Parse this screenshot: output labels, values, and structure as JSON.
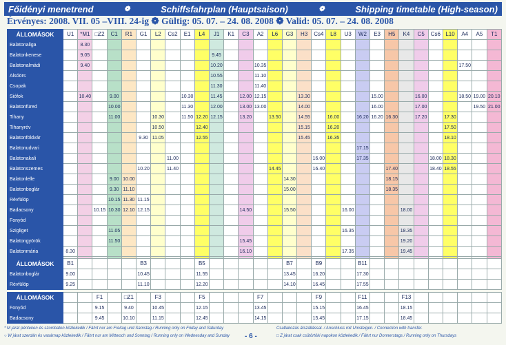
{
  "header": {
    "hu_title": "Főidényi menetrend",
    "de_title": "Schiffsfahrplan (Hauptsaison)",
    "en_title": "Shipping timetable (High-season)",
    "validity": "Érvényes: 2008. VII. 05 –VIII. 24-ig ❁ Gültig: 05. 07. – 24. 08. 2008 ❁ Valid: 05. 07. – 24. 08. 2008"
  },
  "main": {
    "stations_label": "ÁLLOMÁSOK",
    "services": [
      "U1",
      "*M1",
      "□Z2",
      "C1",
      "R1",
      "G1",
      "L2",
      "Cs2",
      "E1",
      "L4",
      "J1",
      "K1",
      "C3",
      "A2",
      "L6",
      "G3",
      "H3",
      "Cs4",
      "L8",
      "U3",
      "W2",
      "E3",
      "H5",
      "K4",
      "C5",
      "Cs6",
      "L10",
      "A4",
      "A5",
      "T1"
    ],
    "service_colors": [
      "#ffffff",
      "#f3d0e6",
      "#ffffff",
      "#b8e0c8",
      "#fde7c4",
      "#ffffff",
      "#ffffcc",
      "#ffffff",
      "#ffffff",
      "#ffff66",
      "#cfe9df",
      "#ffffff",
      "#f0ccea",
      "#ffffff",
      "#ffff66",
      "#ffffcc",
      "#fbe0c8",
      "#ffffff",
      "#ffff66",
      "#ffffff",
      "#c9ccf2",
      "#ffffff",
      "#f7c7a8",
      "#e8e8e8",
      "#f0ccea",
      "#ffffff",
      "#ffff66",
      "#ffffff",
      "#ffffff",
      "#f4b8d4"
    ],
    "rows": [
      {
        "st": "Balatonaliga",
        "c": {
          "1": "8.30"
        }
      },
      {
        "st": "Balatonkenese",
        "c": {
          "1": "9.05",
          "10": "9.45"
        }
      },
      {
        "st": "Balatonalmádi",
        "c": {
          "1": "9.40",
          "10": "10.20",
          "13": "10.35",
          "27": "17.50"
        }
      },
      {
        "st": "Alsóörs",
        "c": {
          "10": "10.55",
          "13": "11.10"
        }
      },
      {
        "st": "Csopak",
        "c": {
          "10": "11.30",
          "13": "11.40"
        }
      },
      {
        "st": "Siófok",
        "c": {
          "1": "10.40",
          "3": "9.00",
          "8": "10.30",
          "10": "11.45",
          "12": "12.00",
          "13": "12.15",
          "16": "13.30",
          "21": "15.00",
          "24": "16.00",
          "27": "18.50",
          "28": "19.00",
          "29": "20.10"
        }
      },
      {
        "st": "Balatonfüred",
        "c": {
          "3": "10.00",
          "8": "11.30",
          "10": "12.00",
          "12": "13.00",
          "13": "13.00",
          "16": "14.00",
          "21": "16.00",
          "24": "17.00",
          "28": "19.50",
          "29": "21.00"
        }
      },
      {
        "st": "Tihany",
        "c": {
          "3": "11.00",
          "6": "10.30",
          "8": "11.50",
          "9": "12.20",
          "10": "12.15",
          "12": "13.20",
          "14": "13.50",
          "16": "14.55",
          "18": "16.00",
          "20": "16.20",
          "21": "16.20",
          "22": "16.30",
          "24": "17.20",
          "26": "17.30"
        }
      },
      {
        "st": "Tihanyrév",
        "c": {
          "6": "10.50",
          "9": "12.40",
          "16": "15.15",
          "18": "16.20",
          "26": "17.50"
        }
      },
      {
        "st": "Balatonföldvár",
        "c": {
          "5": "9.30",
          "6": "11.05",
          "9": "12.55",
          "16": "15.45",
          "18": "16.35",
          "26": "18.10"
        }
      },
      {
        "st": "Balatonudvari",
        "c": {
          "20": "17.15"
        }
      },
      {
        "st": "Balatonakali",
        "c": {
          "7": "11.00",
          "17": "16.00",
          "20": "17.35",
          "25": "18.00",
          "26": "18.30"
        }
      },
      {
        "st": "Balatonszemes",
        "c": {
          "5": "10.20",
          "7": "11.40",
          "14": "14.45",
          "17": "16.40",
          "22": "17.40",
          "25": "18.40",
          "26": "18.55"
        }
      },
      {
        "st": "Balatonlelle",
        "c": {
          "3": "9.00",
          "4": "10.00",
          "15": "14.30",
          "22": "18.15"
        }
      },
      {
        "st": "Balatonboglár",
        "c": {
          "3": "9.30",
          "4": "11.10",
          "15": "15.00",
          "22": "18.35"
        }
      },
      {
        "st": "Révfülöp",
        "c": {
          "3": "10.15",
          "4": "11.30",
          "5": "11.15"
        }
      },
      {
        "st": "Badacsony",
        "c": {
          "2": "10.15",
          "3": "10.30",
          "4": "12.10",
          "5": "12.15",
          "12": "14.50",
          "15": "15.50",
          "19": "16.00",
          "23": "18.00"
        }
      },
      {
        "st": "Fonyód",
        "c": {}
      },
      {
        "st": "Szigliget",
        "c": {
          "3": "11.05",
          "19": "16.35",
          "23": "18.35"
        }
      },
      {
        "st": "Balatongyörök",
        "c": {
          "3": "11.50",
          "12": "15.45",
          "23": "19.20"
        }
      },
      {
        "st": "Balatonmária",
        "c": {
          "0": "8.30",
          "12": "16.10",
          "19": "17.35",
          "23": "19.45"
        }
      },
      {
        "st": "Keszthely",
        "c": {
          "0": "9.20",
          "2": "11.45",
          "3": "12.30",
          "19": "18.25",
          "23": "20.00"
        }
      }
    ]
  },
  "mid": {
    "stations_label": "ÁLLOMÁSOK",
    "headers": {
      "0": "B1",
      "5": "B3",
      "9": "B5",
      "15": "B7",
      "17": "B9",
      "20": "B11"
    },
    "rows": [
      {
        "st": "Balatonboglár",
        "c": {
          "0": "9.00",
          "5": "10.45",
          "9": "11.55",
          "15": "13.45",
          "17": "16.20",
          "20": "17.30"
        }
      },
      {
        "st": "Révfülöp",
        "c": {
          "0": "9.25",
          "5": "11.10",
          "9": "12.20",
          "15": "14.10",
          "17": "16.45",
          "20": "17.55"
        }
      }
    ]
  },
  "bottom": {
    "stations_label": "ÁLLOMÁSOK",
    "headers": {
      "2": "F1",
      "4": "□Z1",
      "6": "F3",
      "9": "F5",
      "13": "F7",
      "17": "F9",
      "20": "F11",
      "23": "F13"
    },
    "rows": [
      {
        "st": "Fonyód",
        "c": {
          "2": "9.15",
          "4": "9.40",
          "6": "10.45",
          "9": "12.15",
          "13": "13.45",
          "17": "15.15",
          "20": "16.45",
          "23": "18.15"
        }
      },
      {
        "st": "Badacsony",
        "c": {
          "2": "9.45",
          "4": "10.10",
          "6": "11.15",
          "9": "12.45",
          "13": "14.15",
          "17": "15.45",
          "20": "17.15",
          "23": "18.45"
        }
      }
    ]
  },
  "footer": {
    "note_left_1": "* M járat pénteken és szombaton közlekedik / Fährt nur am Freitag und Samstag / Running only on Friday and Saturday",
    "note_left_2": "○ W járat szerdán és vasárnap közlekedik / Fährt nur am Mittwoch und Sonntag / Running only on Wednesday and Sunday",
    "note_right_1": "Csatlakozás átszállással. / Anschluss mit Umsteigen. / Connection with transfer.",
    "note_right_2": "□ Z járat csak csütörtöki napokon közlekedik / Fährt nur Donnerstags / Running only on Thursdays",
    "page_number": "- 6 -"
  }
}
